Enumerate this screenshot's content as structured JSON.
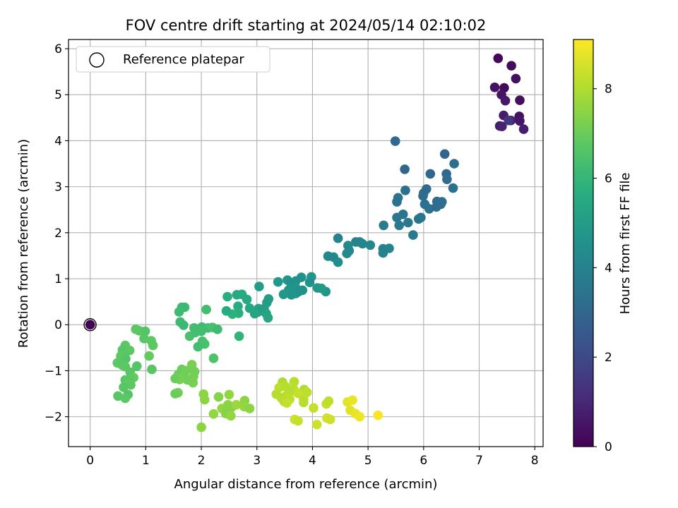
{
  "chart_data": {
    "type": "scatter",
    "title": "FOV centre drift starting at 2024/05/14 02:10:02",
    "xlabel": "Angular distance from reference (arcmin)",
    "ylabel": "Rotation from reference (arcmin)",
    "xlim": [
      -0.39,
      8.15
    ],
    "ylim": [
      -2.65,
      6.2
    ],
    "xticks": [
      0,
      1,
      2,
      3,
      4,
      5,
      6,
      7,
      8
    ],
    "yticks": [
      -2,
      -1,
      0,
      1,
      2,
      3,
      4,
      5,
      6
    ],
    "grid": true,
    "legend": {
      "position": "top-left",
      "entries": [
        "Reference platepar"
      ]
    },
    "colorbar": {
      "label": "Hours from first FF file",
      "colormap": "viridis",
      "range": [
        0,
        9.1
      ],
      "ticks": [
        0,
        2,
        4,
        6,
        8
      ]
    },
    "reference_point": {
      "x": 0,
      "y": 0,
      "label": "Reference platepar"
    },
    "points": [
      [
        7.34,
        5.79,
        0.15
      ],
      [
        7.58,
        5.63,
        0.25
      ],
      [
        7.66,
        5.35,
        0.35
      ],
      [
        7.28,
        5.16,
        0.45
      ],
      [
        7.45,
        5.15,
        0.2
      ],
      [
        7.4,
        5.0,
        0.5
      ],
      [
        7.47,
        4.87,
        0.6
      ],
      [
        7.73,
        4.88,
        0.3
      ],
      [
        7.44,
        4.55,
        0.7
      ],
      [
        7.57,
        4.44,
        0.8
      ],
      [
        7.72,
        4.53,
        0.4
      ],
      [
        7.73,
        4.43,
        0.55
      ],
      [
        7.37,
        4.32,
        0.65
      ],
      [
        7.8,
        4.25,
        0.75
      ],
      [
        7.41,
        4.31,
        0.85
      ],
      [
        7.53,
        4.44,
        1.4
      ],
      [
        5.49,
        3.99,
        3.1
      ],
      [
        5.66,
        3.38,
        3.0
      ],
      [
        6.38,
        3.71,
        2.9
      ],
      [
        6.55,
        3.5,
        3.3
      ],
      [
        6.12,
        3.28,
        3.0
      ],
      [
        6.41,
        3.28,
        3.1
      ],
      [
        6.42,
        3.16,
        3.2
      ],
      [
        6.53,
        2.97,
        3.3
      ],
      [
        6.05,
        2.95,
        3.2
      ],
      [
        6.0,
        2.86,
        3.1
      ],
      [
        5.99,
        2.8,
        3.2
      ],
      [
        5.67,
        2.92,
        3.3
      ],
      [
        5.54,
        2.76,
        3.5
      ],
      [
        5.52,
        2.67,
        3.4
      ],
      [
        6.02,
        2.62,
        3.3
      ],
      [
        6.1,
        2.52,
        3.4
      ],
      [
        6.24,
        2.68,
        3.2
      ],
      [
        6.31,
        2.62,
        3.3
      ],
      [
        6.33,
        2.67,
        3.3
      ],
      [
        6.23,
        2.56,
        3.2
      ],
      [
        5.63,
        2.4,
        3.5
      ],
      [
        5.52,
        2.33,
        3.6
      ],
      [
        5.95,
        2.33,
        3.5
      ],
      [
        5.91,
        2.3,
        3.5
      ],
      [
        5.72,
        2.22,
        3.6
      ],
      [
        5.56,
        2.16,
        3.7
      ],
      [
        5.28,
        2.16,
        3.8
      ],
      [
        5.81,
        1.95,
        3.7
      ],
      [
        4.46,
        1.88,
        4.0
      ],
      [
        5.27,
        1.65,
        4.0
      ],
      [
        5.38,
        1.66,
        4.1
      ],
      [
        5.27,
        1.56,
        4.0
      ],
      [
        4.85,
        1.8,
        4.1
      ],
      [
        4.78,
        1.8,
        4.0
      ],
      [
        4.9,
        1.76,
        4.1
      ],
      [
        5.04,
        1.73,
        4.2
      ],
      [
        4.64,
        1.72,
        4.3
      ],
      [
        4.66,
        1.61,
        4.2
      ],
      [
        4.62,
        1.55,
        4.3
      ],
      [
        4.28,
        1.49,
        4.3
      ],
      [
        4.38,
        1.47,
        4.2
      ],
      [
        4.46,
        1.36,
        4.4
      ],
      [
        3.98,
        1.04,
        4.7
      ],
      [
        3.8,
        1.03,
        4.6
      ],
      [
        3.7,
        0.95,
        4.6
      ],
      [
        3.55,
        0.97,
        4.7
      ],
      [
        3.38,
        0.93,
        4.8
      ],
      [
        3.95,
        0.92,
        4.6
      ],
      [
        4.09,
        0.8,
        4.8
      ],
      [
        4.24,
        0.72,
        4.7
      ],
      [
        3.62,
        0.88,
        4.6
      ],
      [
        3.7,
        0.8,
        4.7
      ],
      [
        3.82,
        0.75,
        4.6
      ],
      [
        3.57,
        0.75,
        4.7
      ],
      [
        3.7,
        0.68,
        4.8
      ],
      [
        3.75,
        0.72,
        4.6
      ],
      [
        3.62,
        0.65,
        4.7
      ],
      [
        3.48,
        0.66,
        4.8
      ],
      [
        4.16,
        0.79,
        4.9
      ],
      [
        3.04,
        0.83,
        5.0
      ],
      [
        3.21,
        0.56,
        5.1
      ],
      [
        3.18,
        0.48,
        5.0
      ],
      [
        3.13,
        0.35,
        5.1
      ],
      [
        3.03,
        0.35,
        5.2
      ],
      [
        3.01,
        0.27,
        5.3
      ],
      [
        3.05,
        0.3,
        5.1
      ],
      [
        3.17,
        0.24,
        5.2
      ],
      [
        3.2,
        0.15,
        5.3
      ],
      [
        2.87,
        0.36,
        5.4
      ],
      [
        2.82,
        0.55,
        5.5
      ],
      [
        2.73,
        0.66,
        5.6
      ],
      [
        2.64,
        0.65,
        5.5
      ],
      [
        2.47,
        0.61,
        5.7
      ],
      [
        2.66,
        0.4,
        5.6
      ],
      [
        2.67,
        0.25,
        5.7
      ],
      [
        2.56,
        0.23,
        5.8
      ],
      [
        2.45,
        0.3,
        5.6
      ],
      [
        2.96,
        0.24,
        5.3
      ],
      [
        2.68,
        -0.25,
        5.9
      ],
      [
        1.7,
        0.38,
        6.2
      ],
      [
        1.65,
        0.38,
        6.1
      ],
      [
        1.6,
        0.28,
        6.2
      ],
      [
        2.09,
        0.33,
        6.3
      ],
      [
        1.62,
        0.06,
        6.2
      ],
      [
        1.68,
        -0.01,
        6.1
      ],
      [
        1.87,
        -0.07,
        6.3
      ],
      [
        2.01,
        -0.05,
        6.2
      ],
      [
        2.12,
        -0.07,
        6.3
      ],
      [
        2.2,
        -0.06,
        6.4
      ],
      [
        2.29,
        -0.1,
        6.2
      ],
      [
        2.0,
        -0.14,
        6.3
      ],
      [
        1.89,
        -0.17,
        6.3
      ],
      [
        1.79,
        -0.25,
        6.4
      ],
      [
        2.02,
        -0.36,
        6.4
      ],
      [
        2.06,
        -0.42,
        6.4
      ],
      [
        1.94,
        -0.48,
        6.3
      ],
      [
        2.22,
        -0.73,
        6.5
      ],
      [
        0.88,
        -0.13,
        6.7
      ],
      [
        0.82,
        -0.1,
        6.8
      ],
      [
        0.99,
        -0.14,
        6.6
      ],
      [
        0.97,
        -0.3,
        6.7
      ],
      [
        1.1,
        -0.35,
        6.8
      ],
      [
        1.13,
        -0.45,
        6.8
      ],
      [
        1.06,
        -0.68,
        6.9
      ],
      [
        1.11,
        -0.97,
        6.7
      ],
      [
        0.63,
        -0.45,
        6.8
      ],
      [
        0.58,
        -0.55,
        6.7
      ],
      [
        0.71,
        -0.56,
        6.8
      ],
      [
        0.62,
        -0.65,
        6.7
      ],
      [
        0.55,
        -0.68,
        6.8
      ],
      [
        0.64,
        -0.74,
        6.6
      ],
      [
        0.53,
        -0.82,
        6.7
      ],
      [
        0.49,
        -0.83,
        6.8
      ],
      [
        0.58,
        -0.88,
        6.7
      ],
      [
        0.84,
        -0.9,
        6.6
      ],
      [
        0.63,
        -0.91,
        6.8
      ],
      [
        0.72,
        -1.03,
        6.7
      ],
      [
        0.78,
        -1.15,
        6.9
      ],
      [
        0.72,
        -1.18,
        6.8
      ],
      [
        0.63,
        -1.2,
        6.7
      ],
      [
        0.67,
        -1.29,
        6.9
      ],
      [
        0.73,
        -1.31,
        6.8
      ],
      [
        0.6,
        -1.36,
        6.7
      ],
      [
        0.68,
        -1.52,
        6.6
      ],
      [
        0.5,
        -1.55,
        6.7
      ],
      [
        0.63,
        -1.6,
        6.8
      ],
      [
        1.65,
        -0.97,
        7.0
      ],
      [
        1.72,
        -1.0,
        7.1
      ],
      [
        1.83,
        -0.87,
        7.2
      ],
      [
        1.59,
        -1.08,
        7.0
      ],
      [
        1.69,
        -1.12,
        7.1
      ],
      [
        1.86,
        -1.13,
        7.2
      ],
      [
        1.75,
        -1.2,
        7.1
      ],
      [
        1.61,
        -1.19,
        7.2
      ],
      [
        1.53,
        -1.17,
        7.0
      ],
      [
        1.85,
        -1.26,
        7.2
      ],
      [
        1.88,
        -1.02,
        7.1
      ],
      [
        1.58,
        -1.48,
        7.1
      ],
      [
        1.53,
        -1.5,
        7.0
      ],
      [
        2.04,
        -1.51,
        7.5
      ],
      [
        2.06,
        -1.63,
        7.5
      ],
      [
        2.31,
        -1.57,
        7.4
      ],
      [
        2.5,
        -1.52,
        7.6
      ],
      [
        2.48,
        -1.74,
        7.5
      ],
      [
        2.37,
        -1.82,
        7.6
      ],
      [
        2.44,
        -1.86,
        7.5
      ],
      [
        2.55,
        -1.79,
        7.4
      ],
      [
        2.63,
        -1.74,
        7.7
      ],
      [
        2.78,
        -1.65,
        7.5
      ],
      [
        2.77,
        -1.78,
        7.6
      ],
      [
        2.87,
        -1.82,
        7.5
      ],
      [
        2.22,
        -1.94,
        7.6
      ],
      [
        2.44,
        -1.93,
        7.4
      ],
      [
        2.53,
        -1.98,
        7.6
      ],
      [
        2.0,
        -2.23,
        7.5
      ],
      [
        3.46,
        -1.25,
        8.0
      ],
      [
        3.67,
        -1.24,
        8.1
      ],
      [
        3.4,
        -1.37,
        8.2
      ],
      [
        3.52,
        -1.35,
        8.1
      ],
      [
        3.66,
        -1.4,
        8.2
      ],
      [
        3.85,
        -1.41,
        8.0
      ],
      [
        3.61,
        -1.45,
        8.1
      ],
      [
        3.74,
        -1.49,
        8.3
      ],
      [
        3.35,
        -1.51,
        8.1
      ],
      [
        3.52,
        -1.55,
        8.2
      ],
      [
        3.44,
        -1.59,
        8.1
      ],
      [
        3.59,
        -1.62,
        8.2
      ],
      [
        3.49,
        -1.67,
        8.1
      ],
      [
        3.54,
        -1.7,
        8.3
      ],
      [
        3.84,
        -1.62,
        8.2
      ],
      [
        3.84,
        -1.69,
        8.1
      ],
      [
        3.9,
        -1.47,
        8.2
      ],
      [
        4.02,
        -1.81,
        8.3
      ],
      [
        4.25,
        -1.72,
        8.3
      ],
      [
        4.29,
        -1.66,
        8.2
      ],
      [
        3.68,
        -2.06,
        8.4
      ],
      [
        3.74,
        -2.09,
        8.3
      ],
      [
        4.08,
        -2.17,
        8.4
      ],
      [
        4.26,
        -2.03,
        8.5
      ],
      [
        4.32,
        -2.06,
        8.4
      ],
      [
        4.63,
        -1.68,
        8.7
      ],
      [
        4.72,
        -1.64,
        8.8
      ],
      [
        4.68,
        -1.86,
        8.7
      ],
      [
        4.77,
        -1.93,
        8.8
      ],
      [
        4.85,
        -2.0,
        8.9
      ],
      [
        5.18,
        -1.97,
        9.0
      ]
    ]
  }
}
